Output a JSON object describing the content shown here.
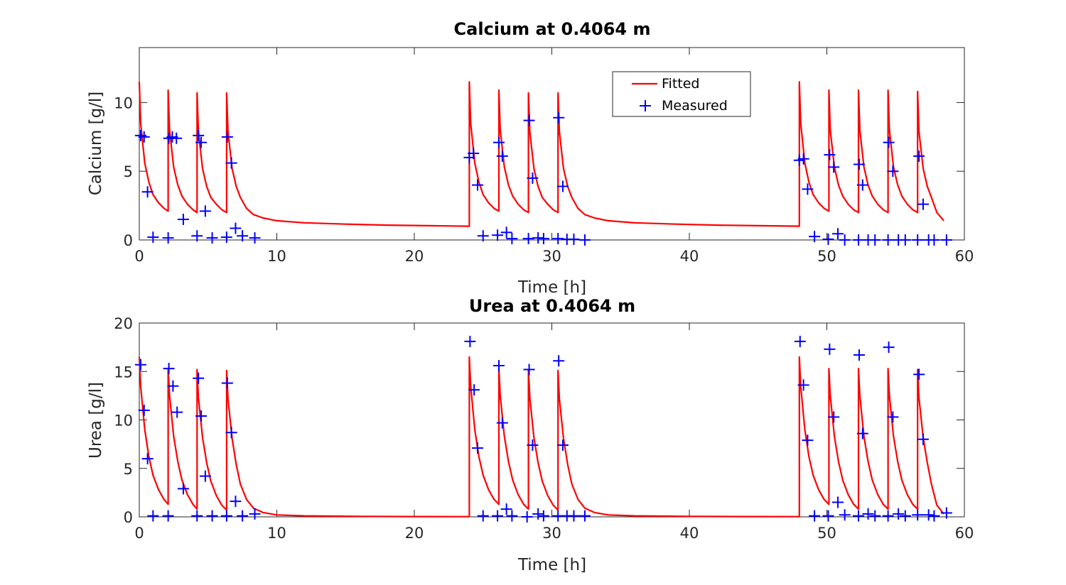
{
  "chart_data": [
    {
      "type": "line",
      "title": "Calcium at 0.4064 m",
      "xlabel": "Time [h]",
      "ylabel": "Calcium [g/l]",
      "xlim": [
        0,
        60
      ],
      "ylim": [
        0,
        14
      ],
      "xticks": [
        "0",
        "10",
        "20",
        "30",
        "40",
        "50",
        "60"
      ],
      "yticks": [
        "0",
        "5",
        "10"
      ],
      "legend": {
        "position": "top-middle",
        "entries": [
          "Fitted",
          "Measured"
        ]
      },
      "series": [
        {
          "name": "Fitted",
          "color": "#ff0000",
          "cycle_starts": [
            0,
            2.1,
            4.2,
            6.35,
            24.0,
            26.15,
            28.3,
            30.45,
            48.0,
            50.15,
            52.3,
            54.45,
            56.6
          ],
          "peaks": [
            11.5,
            10.9,
            10.7,
            10.7,
            11.5,
            10.9,
            10.7,
            10.7,
            11.5,
            10.9,
            10.9,
            10.9,
            10.8
          ],
          "valley": 1.0,
          "x": [
            0,
            0.1,
            0.4,
            0.7,
            1.0,
            1.4,
            1.8,
            2.1,
            2.1,
            2.2,
            2.5,
            2.8,
            3.1,
            3.5,
            3.9,
            4.2,
            4.2,
            4.3,
            4.6,
            4.9,
            5.2,
            5.6,
            6.0,
            6.35,
            6.35,
            6.45,
            6.75,
            7.05,
            7.35,
            7.8,
            8.3,
            9.0,
            10.0,
            12.0,
            15.0,
            18.0,
            21.0,
            24.0,
            24.0,
            24.1,
            24.4,
            24.7,
            25.0,
            25.4,
            25.8,
            26.15,
            26.15,
            26.25,
            26.55,
            26.85,
            27.15,
            27.55,
            27.95,
            28.3,
            28.3,
            28.4,
            28.7,
            29.0,
            29.3,
            29.7,
            30.1,
            30.45,
            30.45,
            30.55,
            30.85,
            31.15,
            31.45,
            31.9,
            32.4,
            33.1,
            34.1,
            36.0,
            39.0,
            42.0,
            45.0,
            48.0,
            48.0,
            48.1,
            48.4,
            48.7,
            49.0,
            49.4,
            49.8,
            50.15,
            50.15,
            50.25,
            50.55,
            50.85,
            51.15,
            51.55,
            51.95,
            52.3,
            52.3,
            52.4,
            52.7,
            53.0,
            53.3,
            53.7,
            54.1,
            54.45,
            54.45,
            54.55,
            54.85,
            55.15,
            55.45,
            55.85,
            56.25,
            56.6,
            56.6,
            56.7,
            57.0,
            57.3,
            57.6,
            58.0,
            58.5
          ],
          "y": [
            11.5,
            8.5,
            5.6,
            4.2,
            3.3,
            2.7,
            2.3,
            2.1,
            10.9,
            8.0,
            5.3,
            4.0,
            3.2,
            2.6,
            2.2,
            2.0,
            10.7,
            7.9,
            5.2,
            3.9,
            3.1,
            2.6,
            2.2,
            2.0,
            10.7,
            7.9,
            5.2,
            3.9,
            3.1,
            2.3,
            1.85,
            1.6,
            1.4,
            1.25,
            1.15,
            1.08,
            1.04,
            1.0,
            11.5,
            8.5,
            5.6,
            4.2,
            3.3,
            2.7,
            2.3,
            2.1,
            10.9,
            8.0,
            5.3,
            4.0,
            3.2,
            2.6,
            2.2,
            2.0,
            10.7,
            7.9,
            5.2,
            3.9,
            3.1,
            2.6,
            2.2,
            2.0,
            10.7,
            7.9,
            5.2,
            3.9,
            3.1,
            2.3,
            1.85,
            1.6,
            1.4,
            1.25,
            1.15,
            1.08,
            1.04,
            1.0,
            11.5,
            8.5,
            5.6,
            4.2,
            3.3,
            2.7,
            2.3,
            2.1,
            10.9,
            8.0,
            5.3,
            4.0,
            3.2,
            2.6,
            2.2,
            2.0,
            10.9,
            8.0,
            5.3,
            4.0,
            3.2,
            2.6,
            2.2,
            2.0,
            10.9,
            8.0,
            5.3,
            4.0,
            3.2,
            2.6,
            2.2,
            2.0,
            10.8,
            7.9,
            5.2,
            3.9,
            3.1,
            2.0,
            1.4
          ]
        },
        {
          "name": "Measured",
          "color": "#0000ff",
          "marker": "+",
          "points": [
            [
              0.1,
              7.6
            ],
            [
              0.35,
              7.5
            ],
            [
              0.6,
              3.5
            ],
            [
              1.0,
              0.2
            ],
            [
              2.1,
              0.15
            ],
            [
              2.15,
              7.4
            ],
            [
              2.4,
              7.5
            ],
            [
              2.7,
              7.4
            ],
            [
              3.2,
              1.5
            ],
            [
              4.2,
              0.3
            ],
            [
              4.3,
              7.6
            ],
            [
              4.5,
              7.1
            ],
            [
              4.8,
              2.1
            ],
            [
              5.3,
              0.15
            ],
            [
              6.35,
              0.2
            ],
            [
              6.4,
              7.5
            ],
            [
              6.7,
              5.6
            ],
            [
              7.0,
              0.85
            ],
            [
              7.5,
              0.3
            ],
            [
              8.4,
              0.15
            ],
            [
              24.0,
              6.0
            ],
            [
              24.3,
              6.3
            ],
            [
              24.6,
              4.0
            ],
            [
              25.0,
              0.3
            ],
            [
              26.05,
              0.35
            ],
            [
              26.15,
              7.1
            ],
            [
              26.4,
              6.1
            ],
            [
              26.7,
              0.55
            ],
            [
              27.1,
              0.1
            ],
            [
              28.3,
              0.1
            ],
            [
              28.35,
              8.7
            ],
            [
              28.6,
              4.5
            ],
            [
              29.0,
              0.15
            ],
            [
              29.4,
              0.1
            ],
            [
              30.45,
              0.1
            ],
            [
              30.5,
              8.9
            ],
            [
              30.8,
              3.9
            ],
            [
              31.1,
              0.05
            ],
            [
              31.6,
              0.05
            ],
            [
              32.4,
              0.0
            ],
            [
              48.0,
              5.8
            ],
            [
              48.3,
              5.9
            ],
            [
              48.6,
              3.7
            ],
            [
              49.1,
              0.25
            ],
            [
              50.1,
              0.05
            ],
            [
              50.2,
              6.2
            ],
            [
              50.5,
              5.3
            ],
            [
              50.8,
              0.45
            ],
            [
              51.3,
              0.0
            ],
            [
              52.3,
              0.0
            ],
            [
              52.35,
              5.5
            ],
            [
              52.6,
              4.0
            ],
            [
              53.0,
              0.0
            ],
            [
              53.5,
              0.0
            ],
            [
              54.45,
              0.0
            ],
            [
              54.5,
              7.1
            ],
            [
              54.8,
              5.0
            ],
            [
              55.2,
              0.0
            ],
            [
              55.7,
              0.0
            ],
            [
              56.6,
              0.0
            ],
            [
              56.7,
              6.1
            ],
            [
              57.0,
              2.6
            ],
            [
              57.4,
              0.0
            ],
            [
              57.8,
              0.0
            ],
            [
              58.7,
              0.0
            ]
          ]
        }
      ]
    },
    {
      "type": "line",
      "title": "Urea at 0.4064 m",
      "xlabel": "Time [h]",
      "ylabel": "Urea [g/l]",
      "xlim": [
        0,
        60
      ],
      "ylim": [
        0,
        20
      ],
      "xticks": [
        "0",
        "10",
        "20",
        "30",
        "40",
        "50",
        "60"
      ],
      "yticks": [
        "0",
        "5",
        "10",
        "15",
        "20"
      ],
      "series": [
        {
          "name": "Fitted",
          "color": "#ff0000",
          "x": [
            0,
            0.1,
            0.4,
            0.7,
            1.0,
            1.4,
            1.8,
            2.1,
            2.1,
            2.2,
            2.5,
            2.8,
            3.1,
            3.5,
            3.9,
            4.2,
            4.2,
            4.3,
            4.6,
            4.9,
            5.2,
            5.6,
            6.0,
            6.35,
            6.35,
            6.45,
            6.75,
            7.05,
            7.35,
            7.8,
            8.3,
            9.0,
            10.0,
            12.0,
            16.0,
            20.0,
            24.0,
            24.0,
            24.1,
            24.4,
            24.7,
            25.0,
            25.4,
            25.8,
            26.15,
            26.15,
            26.25,
            26.55,
            26.85,
            27.15,
            27.55,
            27.95,
            28.3,
            28.3,
            28.4,
            28.7,
            29.0,
            29.3,
            29.7,
            30.1,
            30.45,
            30.45,
            30.55,
            30.85,
            31.15,
            31.45,
            31.9,
            32.4,
            33.1,
            34.1,
            36.0,
            40.0,
            44.0,
            48.0,
            48.0,
            48.1,
            48.4,
            48.7,
            49.0,
            49.4,
            49.8,
            50.15,
            50.15,
            50.25,
            50.55,
            50.85,
            51.15,
            51.55,
            51.95,
            52.3,
            52.3,
            52.4,
            52.7,
            53.0,
            53.3,
            53.7,
            54.1,
            54.45,
            54.45,
            54.55,
            54.85,
            55.15,
            55.45,
            55.85,
            56.25,
            56.6,
            56.6,
            56.7,
            57.0,
            57.3,
            57.6,
            58.0,
            58.5
          ],
          "y": [
            16.5,
            13.5,
            9.0,
            6.2,
            4.3,
            2.8,
            1.8,
            1.3,
            15.3,
            12.5,
            8.3,
            5.7,
            3.8,
            2.3,
            1.3,
            0.8,
            15.2,
            12.3,
            8.2,
            5.6,
            3.7,
            2.2,
            1.2,
            0.7,
            15.1,
            12.2,
            8.1,
            5.4,
            3.4,
            1.8,
            0.9,
            0.45,
            0.2,
            0.1,
            0.05,
            0.03,
            0.02,
            16.5,
            13.5,
            9.0,
            6.2,
            4.3,
            2.8,
            1.8,
            1.3,
            15.3,
            12.5,
            8.3,
            5.7,
            3.8,
            2.3,
            1.3,
            0.8,
            15.2,
            12.3,
            8.2,
            5.6,
            3.7,
            2.2,
            1.2,
            0.7,
            15.1,
            12.2,
            8.1,
            5.4,
            3.4,
            1.8,
            0.9,
            0.45,
            0.2,
            0.1,
            0.05,
            0.03,
            0.02,
            16.5,
            13.5,
            9.0,
            6.2,
            4.3,
            2.8,
            1.8,
            1.3,
            15.3,
            12.5,
            8.3,
            5.7,
            3.8,
            2.3,
            1.3,
            0.8,
            15.3,
            12.5,
            8.3,
            5.7,
            3.8,
            2.3,
            1.3,
            0.8,
            15.3,
            12.5,
            8.3,
            5.7,
            3.8,
            2.3,
            1.3,
            0.8,
            15.2,
            12.3,
            8.2,
            5.6,
            3.4,
            1.2,
            0.3
          ]
        },
        {
          "name": "Measured",
          "color": "#0000ff",
          "marker": "+",
          "points": [
            [
              0.1,
              15.7
            ],
            [
              0.35,
              11.0
            ],
            [
              0.6,
              6.0
            ],
            [
              1.0,
              0.1
            ],
            [
              2.1,
              0.1
            ],
            [
              2.15,
              15.3
            ],
            [
              2.45,
              13.5
            ],
            [
              2.75,
              10.8
            ],
            [
              3.2,
              2.9
            ],
            [
              4.2,
              0.1
            ],
            [
              4.3,
              14.3
            ],
            [
              4.5,
              10.4
            ],
            [
              4.8,
              4.2
            ],
            [
              5.3,
              0.1
            ],
            [
              6.35,
              0.1
            ],
            [
              6.4,
              13.8
            ],
            [
              6.7,
              8.7
            ],
            [
              7.0,
              1.6
            ],
            [
              7.5,
              0.1
            ],
            [
              8.4,
              0.3
            ],
            [
              24.05,
              18.1
            ],
            [
              24.35,
              13.1
            ],
            [
              24.6,
              7.1
            ],
            [
              25.0,
              0.1
            ],
            [
              26.05,
              0.1
            ],
            [
              26.15,
              15.6
            ],
            [
              26.4,
              9.7
            ],
            [
              26.7,
              0.8
            ],
            [
              27.1,
              0.1
            ],
            [
              28.2,
              0.0
            ],
            [
              28.35,
              15.2
            ],
            [
              28.6,
              7.4
            ],
            [
              29.0,
              0.3
            ],
            [
              29.4,
              0.1
            ],
            [
              30.45,
              0.1
            ],
            [
              30.5,
              16.1
            ],
            [
              30.8,
              7.4
            ],
            [
              31.1,
              0.1
            ],
            [
              31.6,
              0.1
            ],
            [
              32.4,
              0.1
            ],
            [
              48.05,
              18.1
            ],
            [
              48.3,
              13.6
            ],
            [
              48.6,
              7.9
            ],
            [
              49.1,
              0.1
            ],
            [
              50.1,
              0.1
            ],
            [
              50.2,
              17.3
            ],
            [
              50.5,
              10.3
            ],
            [
              50.8,
              1.5
            ],
            [
              51.3,
              0.2
            ],
            [
              52.3,
              0.1
            ],
            [
              52.35,
              16.7
            ],
            [
              52.6,
              8.6
            ],
            [
              53.0,
              0.3
            ],
            [
              53.5,
              0.1
            ],
            [
              54.45,
              0.1
            ],
            [
              54.5,
              17.5
            ],
            [
              54.8,
              10.3
            ],
            [
              55.2,
              0.3
            ],
            [
              55.7,
              0.1
            ],
            [
              56.6,
              0.2
            ],
            [
              56.7,
              14.7
            ],
            [
              57.0,
              8.0
            ],
            [
              57.4,
              0.2
            ],
            [
              57.8,
              0.1
            ],
            [
              58.7,
              0.4
            ]
          ]
        }
      ]
    }
  ]
}
